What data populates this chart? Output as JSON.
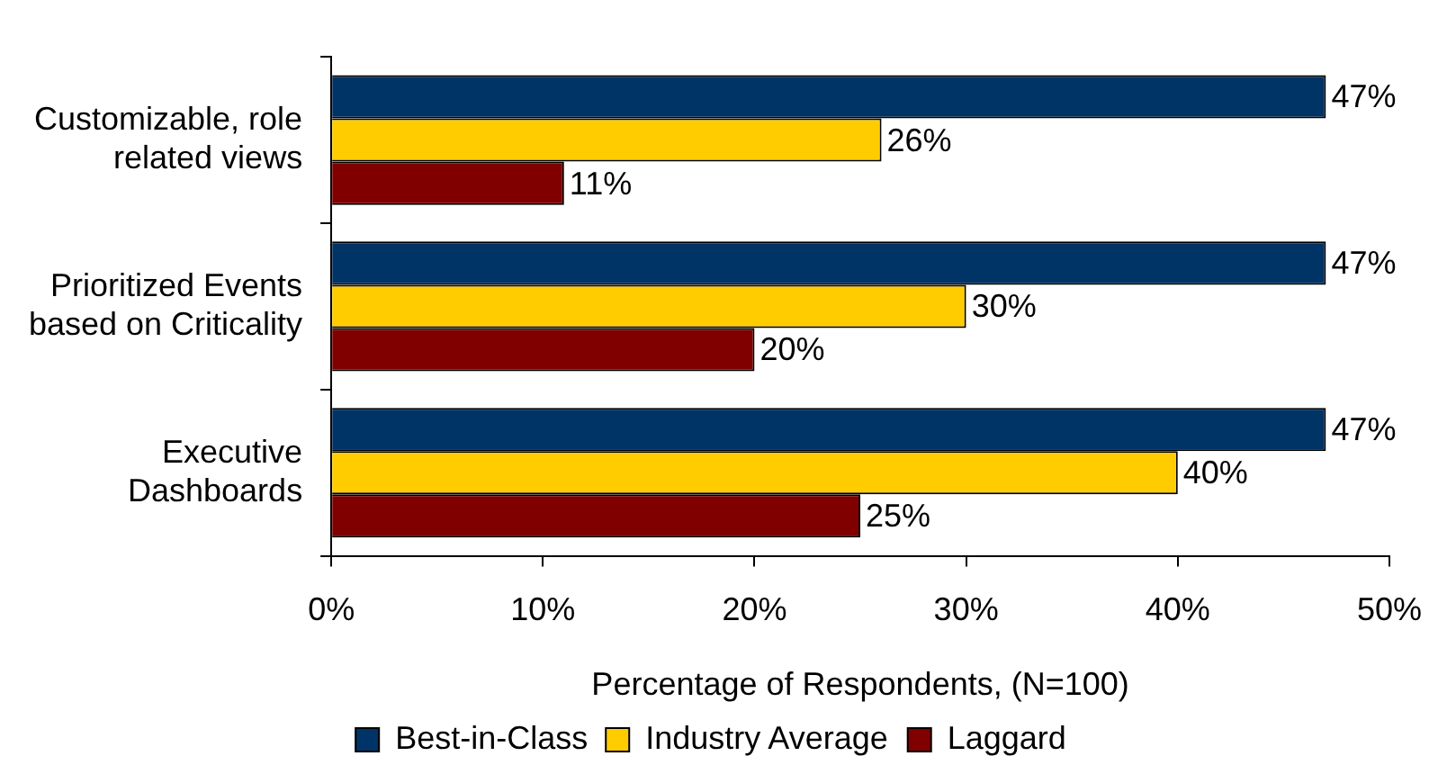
{
  "chart_data": {
    "type": "bar",
    "orientation": "horizontal",
    "categories": [
      "Customizable, role\nrelated views",
      "Prioritized Events\nbased on Criticality",
      "Executive\nDashboards"
    ],
    "series": [
      {
        "name": "Best-in-Class",
        "color": "#003366",
        "values": [
          47,
          47,
          47
        ],
        "value_labels": [
          "47%",
          "47%",
          "47%"
        ]
      },
      {
        "name": "Industry Average",
        "color": "#ffcc00",
        "values": [
          26,
          30,
          40
        ],
        "value_labels": [
          "26%",
          "30%",
          "40%"
        ]
      },
      {
        "name": "Laggard",
        "color": "#800000",
        "values": [
          11,
          20,
          25
        ],
        "value_labels": [
          "11%",
          "20%",
          "25%"
        ]
      }
    ],
    "xlim": [
      0,
      50
    ],
    "xticks": [
      {
        "value": 0,
        "label": "0%"
      },
      {
        "value": 10,
        "label": "10%"
      },
      {
        "value": 20,
        "label": "20%"
      },
      {
        "value": 30,
        "label": "30%"
      },
      {
        "value": 40,
        "label": "40%"
      },
      {
        "value": 50,
        "label": "50%"
      }
    ],
    "xlabel": "Percentage of Respondents, (N=100)",
    "grid": false,
    "legend": "bottom"
  }
}
